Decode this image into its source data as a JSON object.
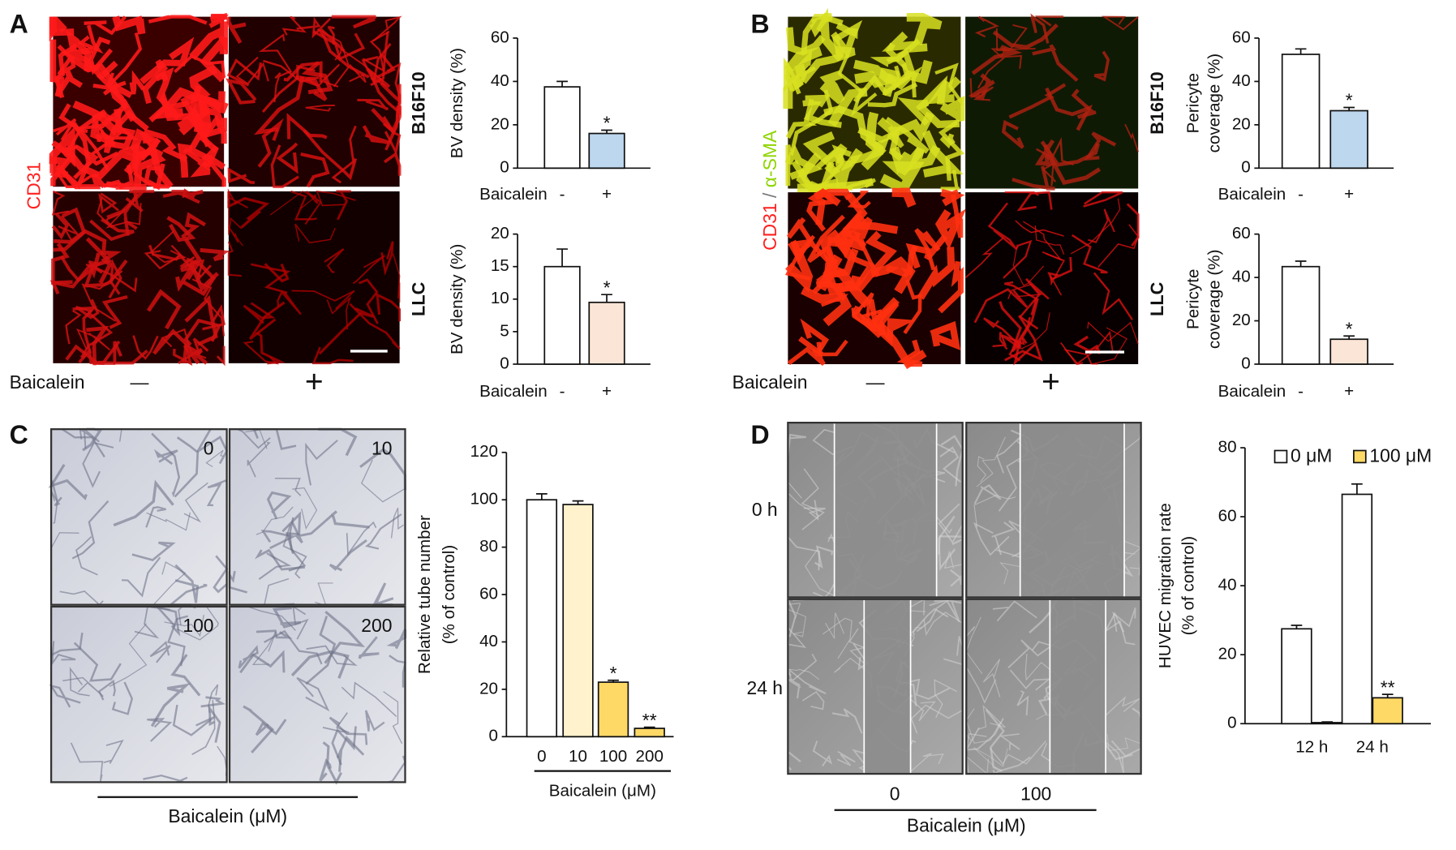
{
  "figure": {
    "panels": [
      {
        "letter": "A",
        "stain": [
          {
            "text": "CD31",
            "color": "#ff2020"
          }
        ],
        "treatment_label": "Baicalein",
        "conditions": [
          "—",
          "+"
        ]
      },
      {
        "letter": "B",
        "stain": [
          {
            "text": "CD31",
            "color": "#ff2020"
          },
          {
            "text": " / ",
            "color": "#777777"
          },
          {
            "text": "α-SMA",
            "color": "#8fd400"
          }
        ],
        "treatment_label": "Baicalein",
        "conditions": [
          "—",
          "+"
        ]
      },
      {
        "letter": "C",
        "image_labels": [
          "0",
          "10",
          "100",
          "200"
        ],
        "treatment_label": "Baicalein (μM)"
      },
      {
        "letter": "D",
        "time_labels": [
          "0 h",
          "24 h"
        ],
        "conditions": [
          "0",
          "100"
        ],
        "treatment_label": "Baicalein (μM)"
      }
    ]
  },
  "chart_data": [
    {
      "type": "bar",
      "row_label": "B16F10",
      "ylabel": [
        "BV density (%)"
      ],
      "xlabel": "Baicalein",
      "categories": [
        "-",
        "+"
      ],
      "values": [
        37.5,
        16
      ],
      "errors": [
        2.5,
        1.5
      ],
      "significance": [
        null,
        "*"
      ],
      "colors": [
        "#ffffff",
        "#bdd7ee"
      ],
      "ylim": [
        0,
        60
      ],
      "yticks": [
        0,
        20,
        40,
        60
      ]
    },
    {
      "type": "bar",
      "row_label": "LLC",
      "ylabel": [
        "BV density (%)"
      ],
      "xlabel": "Baicalein",
      "categories": [
        "-",
        "+"
      ],
      "values": [
        15,
        9.5
      ],
      "errors": [
        2.7,
        1.2
      ],
      "significance": [
        null,
        "*"
      ],
      "colors": [
        "#ffffff",
        "#fbe5d6"
      ],
      "ylim": [
        0,
        20
      ],
      "yticks": [
        0,
        5,
        10,
        15,
        20
      ]
    },
    {
      "type": "bar",
      "row_label": "B16F10",
      "ylabel": [
        "Pericyte",
        "coverage (%)"
      ],
      "xlabel": "Baicalein",
      "categories": [
        "-",
        "+"
      ],
      "values": [
        52.5,
        26.5
      ],
      "errors": [
        2.5,
        1.5
      ],
      "significance": [
        null,
        "*"
      ],
      "colors": [
        "#ffffff",
        "#bdd7ee"
      ],
      "ylim": [
        0,
        60
      ],
      "yticks": [
        0,
        20,
        40,
        60
      ]
    },
    {
      "type": "bar",
      "row_label": "LLC",
      "ylabel": [
        "Pericyte",
        "coverage (%)"
      ],
      "xlabel": "Baicalein",
      "categories": [
        "-",
        "+"
      ],
      "values": [
        45,
        11.5
      ],
      "errors": [
        2.5,
        1.5
      ],
      "significance": [
        null,
        "*"
      ],
      "colors": [
        "#ffffff",
        "#fbe5d6"
      ],
      "ylim": [
        0,
        60
      ],
      "yticks": [
        0,
        20,
        40,
        60
      ]
    },
    {
      "type": "bar",
      "ylabel": [
        "Relative tube number",
        "(% of control)"
      ],
      "xlabel": "Baicalein (μM)",
      "categories": [
        "0",
        "10",
        "100",
        "200"
      ],
      "values": [
        100,
        98,
        23,
        3.5
      ],
      "errors": [
        2.5,
        1.5,
        0.8,
        0.5
      ],
      "significance": [
        null,
        null,
        "*",
        "**"
      ],
      "colors": [
        "#ffffff",
        "#fff2cc",
        "#ffd966",
        "#ffd966"
      ],
      "ylim": [
        0,
        120
      ],
      "yticks": [
        0,
        20,
        40,
        60,
        80,
        100,
        120
      ]
    },
    {
      "type": "grouped-bar",
      "ylabel": [
        "HUVEC migration rate",
        "(% of control)"
      ],
      "categories": [
        "12 h",
        "24 h"
      ],
      "series": [
        {
          "name": "0 μM",
          "color": "#ffffff",
          "values": [
            27.5,
            66.5
          ],
          "errors": [
            1,
            3
          ],
          "significance": [
            null,
            null
          ]
        },
        {
          "name": "100 μM",
          "color": "#ffd966",
          "values": [
            0.3,
            7.5
          ],
          "errors": [
            0.2,
            1
          ],
          "significance": [
            null,
            "**"
          ]
        }
      ],
      "legend": "top",
      "ylim": [
        0,
        80
      ],
      "yticks": [
        0,
        20,
        40,
        60,
        80
      ]
    }
  ]
}
